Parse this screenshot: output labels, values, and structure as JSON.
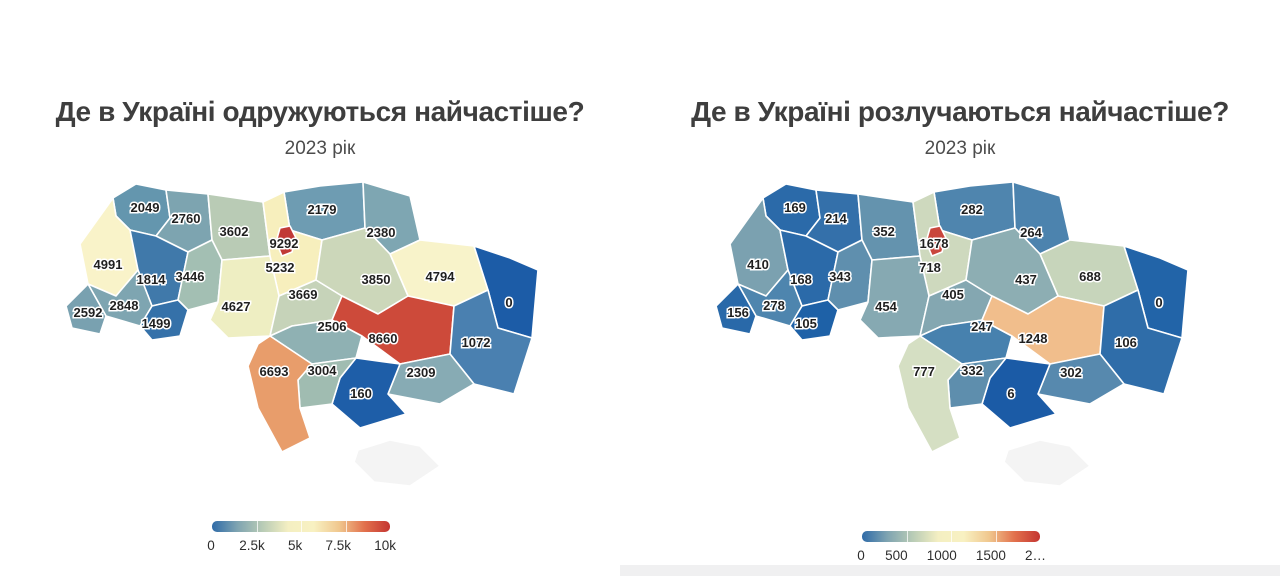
{
  "panels": [
    {
      "title": "Де в Україні одружуються найчастіше?",
      "subtitle": "2023 рік",
      "legend": {
        "ticks": [
          "0",
          "2.5k",
          "5k",
          "7.5k",
          "10k"
        ],
        "gradient": [
          "#2f6ba8",
          "#7fa4b1",
          "#b9ccb6",
          "#f4efc2",
          "#f8f1c2",
          "#f0c78e",
          "#e2714d",
          "#c43531"
        ]
      },
      "regions": {
        "volyn": {
          "value": "2049",
          "color": "#6496ae"
        },
        "rivne": {
          "value": "2760",
          "color": "#7da4b0"
        },
        "zhytomyr": {
          "value": "3602",
          "color": "#b9cbb5"
        },
        "chernihiv": {
          "value": "2179",
          "color": "#6e9cb2"
        },
        "sumy": {
          "value": "2380",
          "color": "#7ea6b2"
        },
        "lviv": {
          "value": "4991",
          "color": "#f9f3c9"
        },
        "ternopil": {
          "value": "1814",
          "color": "#4079aa"
        },
        "khmelnytskyi": {
          "value": "3446",
          "color": "#a3bfb3"
        },
        "kyiv_obl": {
          "value": "5232",
          "color": "#f7efbd"
        },
        "kyiv_city": {
          "value": "9292",
          "color": "#c13a36"
        },
        "kharkiv": {
          "value": "4794",
          "color": "#f8f3ca"
        },
        "luhansk": {
          "value": "0",
          "color": "#1c5ca7"
        },
        "zakarpattia": {
          "value": "2592",
          "color": "#79a1b0"
        },
        "ivano_frankivsk": {
          "value": "2848",
          "color": "#7ea5b1"
        },
        "chernivtsi": {
          "value": "1499",
          "color": "#3571a9"
        },
        "vinnytsia": {
          "value": "4627",
          "color": "#eeeec2"
        },
        "cherkasy": {
          "value": "3669",
          "color": "#c6d3b9"
        },
        "poltava": {
          "value": "3850",
          "color": "#ccd7ba"
        },
        "kirovohrad": {
          "value": "2506",
          "color": "#8fb1b3"
        },
        "dnipro": {
          "value": "8660",
          "color": "#cd4a3a"
        },
        "donetsk": {
          "value": "1072",
          "color": "#4a80b0"
        },
        "zaporizhzhia": {
          "value": "2309",
          "color": "#87abb4"
        },
        "kherson": {
          "value": "160",
          "color": "#1e5ea8"
        },
        "mykolaiv": {
          "value": "3004",
          "color": "#a0bcb1"
        },
        "odesa": {
          "value": "6693",
          "color": "#e89d6b"
        },
        "crimea": {
          "value": null,
          "color": "#f4f4f4"
        }
      }
    },
    {
      "title": "Де в Україні розлучаються найчастіше?",
      "subtitle": "2023 рік",
      "legend": {
        "ticks": [
          "0",
          "500",
          "1000",
          "1500",
          "2…"
        ],
        "gradient": [
          "#2f6ba8",
          "#7fa4b1",
          "#b9ccb6",
          "#f4efc2",
          "#f8f1c2",
          "#f0c78e",
          "#e2714d",
          "#c43531"
        ]
      },
      "regions": {
        "volyn": {
          "value": "169",
          "color": "#2b6aa9"
        },
        "rivne": {
          "value": "214",
          "color": "#3470aa"
        },
        "zhytomyr": {
          "value": "352",
          "color": "#6493ae"
        },
        "chernihiv": {
          "value": "282",
          "color": "#4f85ae"
        },
        "sumy": {
          "value": "264",
          "color": "#4c83ae"
        },
        "lviv": {
          "value": "410",
          "color": "#7ba1b0"
        },
        "ternopil": {
          "value": "168",
          "color": "#2b6aa9"
        },
        "khmelnytskyi": {
          "value": "343",
          "color": "#5f8fae"
        },
        "kyiv_obl": {
          "value": "718",
          "color": "#ced9be"
        },
        "kyiv_city": {
          "value": "1678",
          "color": "#c9463c"
        },
        "kharkiv": {
          "value": "688",
          "color": "#c7d5bb"
        },
        "luhansk": {
          "value": "0",
          "color": "#2264a8"
        },
        "zakarpattia": {
          "value": "156",
          "color": "#2969a9"
        },
        "ivano_frankivsk": {
          "value": "278",
          "color": "#4e85ae"
        },
        "chernivtsi": {
          "value": "105",
          "color": "#1e61a7"
        },
        "vinnytsia": {
          "value": "454",
          "color": "#86a9b2"
        },
        "cherkasy": {
          "value": "405",
          "color": "#84a7b1"
        },
        "poltava": {
          "value": "437",
          "color": "#8daeb3"
        },
        "kirovohrad": {
          "value": "247",
          "color": "#4781ae"
        },
        "dnipro": {
          "value": "1248",
          "color": "#f1be8c"
        },
        "donetsk": {
          "value": "106",
          "color": "#2f6da9"
        },
        "zaporizhzhia": {
          "value": "302",
          "color": "#5789ae"
        },
        "kherson": {
          "value": "6",
          "color": "#1b5ba6"
        },
        "mykolaiv": {
          "value": "332",
          "color": "#5e8ead"
        },
        "odesa": {
          "value": "777",
          "color": "#d5dfc3"
        },
        "crimea": {
          "value": null,
          "color": "#f4f4f4"
        }
      }
    }
  ],
  "chart_data": [
    {
      "type": "heatmap",
      "subtype": "choropleth-map-ukraine-oblasts",
      "title": "Де в Україні одружуються найчастіше?",
      "subtitle": "2023 рік",
      "legend_ticks": [
        "0",
        "2.5k",
        "5k",
        "7.5k",
        "10k"
      ],
      "value_range": [
        0,
        10000
      ],
      "colormap": "diverging blue(low) - pale yellow(mid) - red(high)",
      "values": {
        "volyn": 2049,
        "rivne": 2760,
        "zhytomyr": 3602,
        "chernihiv": 2179,
        "sumy": 2380,
        "lviv": 4991,
        "ternopil": 1814,
        "khmelnytskyi": 3446,
        "kyiv_obl": 5232,
        "kyiv_city": 9292,
        "kharkiv": 4794,
        "luhansk": 0,
        "zakarpattia": 2592,
        "ivano_frankivsk": 2848,
        "chernivtsi": 1499,
        "vinnytsia": 4627,
        "cherkasy": 3669,
        "poltava": 3850,
        "kirovohrad": 2506,
        "dnipro": 8660,
        "donetsk": 1072,
        "zaporizhzhia": 2309,
        "kherson": 160,
        "mykolaiv": 3004,
        "odesa": 6693,
        "crimea": null
      }
    },
    {
      "type": "heatmap",
      "subtype": "choropleth-map-ukraine-oblasts",
      "title": "Де в Україні розлучаються найчастіше?",
      "subtitle": "2023 рік",
      "legend_ticks": [
        "0",
        "500",
        "1000",
        "1500",
        "2…"
      ],
      "value_range": [
        0,
        2000
      ],
      "colormap": "diverging blue(low) - pale yellow(mid) - red(high)",
      "values": {
        "volyn": 169,
        "rivne": 214,
        "zhytomyr": 352,
        "chernihiv": 282,
        "sumy": 264,
        "lviv": 410,
        "ternopil": 168,
        "khmelnytskyi": 343,
        "kyiv_obl": 718,
        "kyiv_city": 1678,
        "kharkiv": 688,
        "luhansk": 0,
        "zakarpattia": 156,
        "ivano_frankivsk": 278,
        "chernivtsi": 105,
        "vinnytsia": 454,
        "cherkasy": 405,
        "poltava": 437,
        "kirovohrad": 247,
        "dnipro": 1248,
        "donetsk": 106,
        "zaporizhzhia": 302,
        "kherson": 6,
        "mykolaiv": 332,
        "odesa": 777,
        "crimea": null
      }
    }
  ]
}
